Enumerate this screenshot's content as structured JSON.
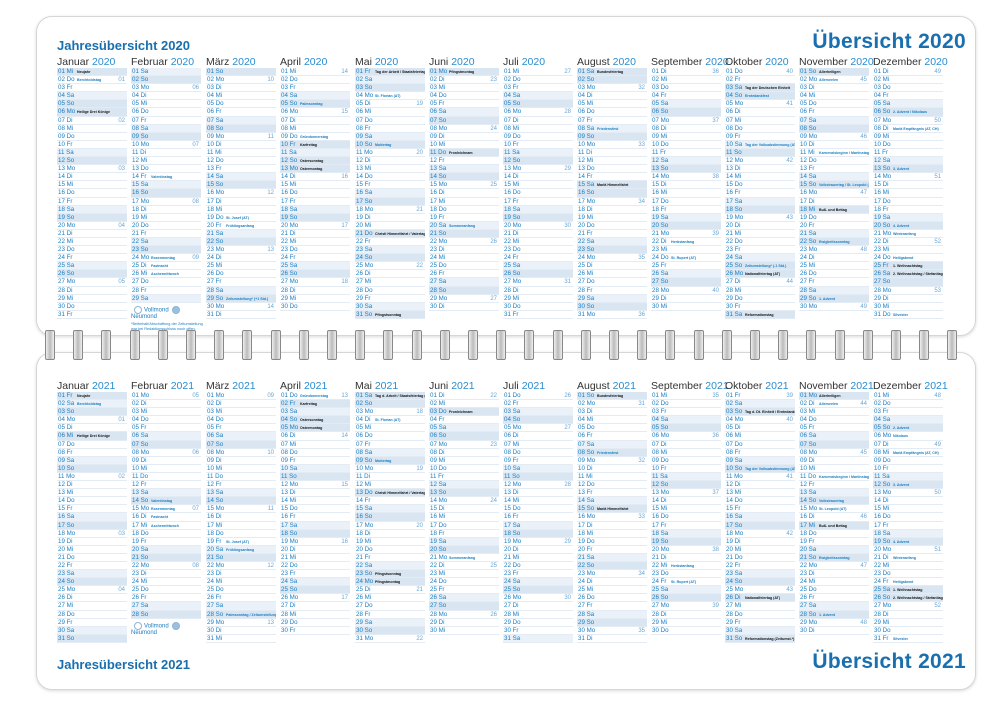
{
  "top": {
    "title_left": "Jahresübersicht 2020",
    "title_right": "Übersicht 2020"
  },
  "bottom": {
    "title_left": "Jahresübersicht 2021",
    "title_right": "Übersicht 2021"
  },
  "legend": {
    "full_moon": "Vollmond",
    "new_moon": "Neumond",
    "footnote": "*Beibehalt/Abschaffung der Zeitumstellung war bei Redaktionsschluss noch offen."
  },
  "colors": {
    "accent": "#1a6fae",
    "weekend": "#eaf1f8",
    "sunday": "#d9e6f2"
  },
  "months_2020": [
    {
      "name": "Januar",
      "year": "2020",
      "days": "01 Mi|02 Do|03 Fr|04 Sa|05 So|06 Mo|07 Di|08 Mi|09 Do|10 Fr|11 Sa|12 So|13 Mo|14 Di|15 Mi|16 Do|17 Fr|18 Sa|19 So|20 Mo|21 Di|22 Mi|23 Do|24 Fr|25 Sa|26 So|27 Mo|28 Di|29 Mi|30 Do|31 Fr",
      "weeks": {
        "2": "01",
        "7": "02",
        "13": "03",
        "20": "04",
        "27": "05"
      },
      "notes": {
        "1": "Neujahr",
        "2": "Berchtoldstag",
        "6": "Heilige Drei Könige"
      },
      "holidays": [
        1,
        6
      ]
    },
    {
      "name": "Februar",
      "year": "2020",
      "days": "01 Sa|02 So|03 Mo|04 Di|05 Mi|06 Do|07 Fr|08 Sa|09 So|10 Mo|11 Di|12 Mi|13 Do|14 Fr|15 Sa|16 So|17 Mo|18 Di|19 Mi|20 Do|21 Fr|22 Sa|23 So|24 Mo|25 Di|26 Mi|27 Do|28 Fr|29 Sa",
      "weeks": {
        "3": "06",
        "10": "07",
        "17": "08",
        "24": "09"
      },
      "notes": {
        "14": "Valentinstag",
        "24": "Rosenmontag",
        "25": "Fastnacht",
        "26": "Aschermittwoch"
      },
      "holidays": []
    },
    {
      "name": "März",
      "year": "2020",
      "days": "01 So|02 Mo|03 Di|04 Mi|05 Do|06 Fr|07 Sa|08 So|09 Mo|10 Di|11 Mi|12 Do|13 Fr|14 Sa|15 So|16 Mo|17 Di|18 Mi|19 Do|20 Fr|21 Sa|22 So|23 Mo|24 Di|25 Mi|26 Do|27 Fr|28 Sa|29 So|30 Mo|31 Di",
      "weeks": {
        "2": "10",
        "9": "11",
        "16": "12",
        "23": "13",
        "30": "14"
      },
      "notes": {
        "19": "St. Josef (AT)",
        "20": "Frühlingsanfang",
        "29": "Zeitumstellung* (+1 Std.)"
      },
      "holidays": []
    },
    {
      "name": "April",
      "year": "2020",
      "days": "01 Mi|02 Do|03 Fr|04 Sa|05 So|06 Mo|07 Di|08 Mi|09 Do|10 Fr|11 Sa|12 So|13 Mo|14 Di|15 Mi|16 Do|17 Fr|18 Sa|19 So|20 Mo|21 Di|22 Mi|23 Do|24 Fr|25 Sa|26 So|27 Mo|28 Di|29 Mi|30 Do",
      "weeks": {
        "1": "14",
        "6": "15",
        "14": "16",
        "20": "17",
        "27": "18"
      },
      "notes": {
        "5": "Palmsonntag",
        "9": "Gründonnerstag",
        "10": "Karfreitag",
        "12": "Ostersonntag",
        "13": "Ostermontag"
      },
      "holidays": [
        10,
        12,
        13
      ]
    },
    {
      "name": "Mai",
      "year": "2020",
      "days": "01 Fr|02 Sa|03 So|04 Mo|05 Di|06 Mi|07 Do|08 Fr|09 Sa|10 So|11 Mo|12 Di|13 Mi|14 Do|15 Fr|16 Sa|17 So|18 Mo|19 Di|20 Mi|21 Do|22 Fr|23 Sa|24 So|25 Mo|26 Di|27 Mi|28 Do|29 Fr|30 Sa|31 So",
      "weeks": {
        "5": "19",
        "11": "20",
        "18": "21",
        "25": "22"
      },
      "notes": {
        "1": "Tag der Arbeit / Staatsfeiertag (AT)",
        "4": "St. Florian (AT)",
        "10": "Muttertag",
        "21": "Christi Himmelfahrt / Vatertag",
        "31": "Pfingstsonntag"
      },
      "holidays": [
        1,
        21,
        31
      ]
    },
    {
      "name": "Juni",
      "year": "2020",
      "days": "01 Mo|02 Di|03 Mi|04 Do|05 Fr|06 Sa|07 So|08 Mo|09 Di|10 Mi|11 Do|12 Fr|13 Sa|14 So|15 Mo|16 Di|17 Mi|18 Do|19 Fr|20 Sa|21 So|22 Mo|23 Di|24 Mi|25 Do|26 Fr|27 Sa|28 So|29 Mo|30 Di",
      "weeks": {
        "2": "23",
        "8": "24",
        "15": "25",
        "22": "26",
        "29": "27"
      },
      "notes": {
        "1": "Pfingstmontag",
        "11": "Fronleichnam",
        "20": "Sommeranfang"
      },
      "holidays": [
        1,
        11
      ]
    },
    {
      "name": "Juli",
      "year": "2020",
      "days": "01 Mi|02 Do|03 Fr|04 Sa|05 So|06 Mo|07 Di|08 Mi|09 Do|10 Fr|11 Sa|12 So|13 Mo|14 Di|15 Mi|16 Do|17 Fr|18 Sa|19 So|20 Mo|21 Di|22 Mi|23 Do|24 Fr|25 Sa|26 So|27 Mo|28 Di|29 Mi|30 Do|31 Fr",
      "weeks": {
        "1": "27",
        "6": "28",
        "13": "29",
        "20": "30",
        "27": "31"
      },
      "notes": {},
      "holidays": []
    },
    {
      "name": "August",
      "year": "2020",
      "days": "01 Sa|02 So|03 Mo|04 Di|05 Mi|06 Do|07 Fr|08 Sa|09 So|10 Mo|11 Di|12 Mi|13 Do|14 Fr|15 Sa|16 So|17 Mo|18 Di|19 Mi|20 Do|21 Fr|22 Sa|23 So|24 Mo|25 Di|26 Mi|27 Do|28 Fr|29 Sa|30 So|31 Mo",
      "weeks": {
        "3": "32",
        "10": "33",
        "17": "34",
        "24": "35",
        "31": "36"
      },
      "notes": {
        "1": "Bundesfeiertag",
        "8": "Friedensfest",
        "15": "Mariä Himmelfahrt"
      },
      "holidays": [
        1,
        15
      ]
    },
    {
      "name": "September",
      "year": "2020",
      "days": "01 Di|02 Mi|03 Do|04 Fr|05 Sa|06 So|07 Mo|08 Di|09 Mi|10 Do|11 Fr|12 Sa|13 So|14 Mo|15 Di|16 Mi|17 Do|18 Fr|19 Sa|20 So|21 Mo|22 Di|23 Mi|24 Do|25 Fr|26 Sa|27 So|28 Mo|29 Di|30 Mi",
      "weeks": {
        "1": "36",
        "7": "37",
        "14": "38",
        "21": "39",
        "28": "40"
      },
      "notes": {
        "22": "Herbstanfang",
        "24": "St. Rupert (AT)"
      },
      "holidays": []
    },
    {
      "name": "Oktober",
      "year": "2020",
      "days": "01 Do|02 Fr|03 Sa|04 So|05 Mo|06 Di|07 Mi|08 Do|09 Fr|10 Sa|11 So|12 Mo|13 Di|14 Mi|15 Do|16 Fr|17 Sa|18 So|19 Mo|20 Di|21 Mi|22 Do|23 Fr|24 Sa|25 So|26 Mo|27 Di|28 Mi|29 Do|30 Fr|31 Sa",
      "weeks": {
        "1": "40",
        "5": "41",
        "12": "42",
        "19": "43",
        "27": "44"
      },
      "notes": {
        "3": "Tag der Deutschen Einheit",
        "4": "Erntedankfest",
        "10": "Tag der Volksabstimmung (AT)",
        "25": "Zeitumstellung* (-1 Std.)",
        "26": "Nationalfeiertag (AT)",
        "31": "Reformationstag"
      },
      "holidays": [
        3,
        26,
        31
      ]
    },
    {
      "name": "November",
      "year": "2020",
      "days": "01 So|02 Mo|03 Di|04 Mi|05 Do|06 Fr|07 Sa|08 So|09 Mo|10 Di|11 Mi|12 Do|13 Fr|14 Sa|15 So|16 Mo|17 Di|18 Mi|19 Do|20 Fr|21 Sa|22 So|23 Mo|24 Di|25 Mi|26 Do|27 Fr|28 Sa|29 So|30 Mo",
      "weeks": {
        "2": "45",
        "9": "46",
        "16": "47",
        "23": "48",
        "30": "49"
      },
      "notes": {
        "1": "Allerheiligen",
        "2": "Allerseelen",
        "11": "Karnevalsbeginn / Martinstag",
        "15": "Volkstrauertag / St. Leopold (AT)",
        "18": "Buß- und Bettag",
        "22": "Ewigkeitssonntag",
        "29": "1. Advent"
      },
      "holidays": [
        1,
        18
      ]
    },
    {
      "name": "Dezember",
      "year": "2020",
      "days": "01 Di|02 Mi|03 Do|04 Fr|05 Sa|06 So|07 Mo|08 Di|09 Mi|10 Do|11 Fr|12 Sa|13 So|14 Mo|15 Di|16 Mi|17 Do|18 Fr|19 Sa|20 So|21 Mo|22 Di|23 Mi|24 Do|25 Fr|26 Sa|27 So|28 Mo|29 Di|30 Mi|31 Do",
      "weeks": {
        "1": "49",
        "7": "50",
        "14": "51",
        "22": "52",
        "28": "53"
      },
      "notes": {
        "6": "2. Advent / Nikolaus",
        "8": "Mariä Empfängnis (AT, CH)",
        "13": "3. Advent",
        "20": "4. Advent",
        "21": "Winteranfang",
        "24": "Heiligabend",
        "25": "1. Weihnachtstag",
        "26": "2. Weihnachtstag / Stefanitag",
        "31": "Silvester"
      },
      "holidays": [
        25,
        26
      ]
    }
  ],
  "months_2021": [
    {
      "name": "Januar",
      "year": "2021",
      "days": "01 Fr|02 Sa|03 So|04 Mo|05 Di|06 Mi|07 Do|08 Fr|09 Sa|10 So|11 Mo|12 Di|13 Mi|14 Do|15 Fr|16 Sa|17 So|18 Mo|19 Di|20 Mi|21 Do|22 Fr|23 Sa|24 So|25 Mo|26 Di|27 Mi|28 Do|29 Fr|30 Sa|31 So",
      "weeks": {
        "4": "01",
        "11": "02",
        "18": "03",
        "25": "04"
      },
      "notes": {
        "1": "Neujahr",
        "2": "Berchtoldstag",
        "6": "Heilige Drei Könige"
      },
      "holidays": [
        1,
        6
      ]
    },
    {
      "name": "Februar",
      "year": "2021",
      "days": "01 Mo|02 Di|03 Mi|04 Do|05 Fr|06 Sa|07 So|08 Mo|09 Di|10 Mi|11 Do|12 Fr|13 Sa|14 So|15 Mo|16 Di|17 Mi|18 Do|19 Fr|20 Sa|21 So|22 Mo|23 Di|24 Mi|25 Do|26 Fr|27 Sa|28 So",
      "weeks": {
        "1": "05",
        "8": "06",
        "15": "07",
        "22": "08"
      },
      "notes": {
        "14": "Valentinstag",
        "15": "Rosenmontag",
        "16": "Fastnacht",
        "17": "Aschermittwoch"
      },
      "holidays": []
    },
    {
      "name": "März",
      "year": "2021",
      "days": "01 Mo|02 Di|03 Mi|04 Do|05 Fr|06 Sa|07 So|08 Mo|09 Di|10 Mi|11 Do|12 Fr|13 Sa|14 So|15 Mo|16 Di|17 Mi|18 Do|19 Fr|20 Sa|21 So|22 Mo|23 Di|24 Mi|25 Do|26 Fr|27 Sa|28 So|29 Mo|30 Di|31 Mi",
      "weeks": {
        "1": "09",
        "8": "10",
        "15": "11",
        "22": "12",
        "29": "13"
      },
      "notes": {
        "19": "St. Josef (AT)",
        "20": "Frühlingsanfang",
        "28": "Palmsonntag / Zeitumstellung*"
      },
      "holidays": []
    },
    {
      "name": "April",
      "year": "2021",
      "days": "01 Do|02 Fr|03 Sa|04 So|05 Mo|06 Di|07 Mi|08 Do|09 Fr|10 Sa|11 So|12 Mo|13 Di|14 Mi|15 Do|16 Fr|17 Sa|18 So|19 Mo|20 Di|21 Mi|22 Do|23 Fr|24 Sa|25 So|26 Mo|27 Di|28 Mi|29 Do|30 Fr",
      "weeks": {
        "1": "13",
        "6": "14",
        "12": "15",
        "19": "16",
        "26": "17"
      },
      "notes": {
        "1": "Gründonnerstag",
        "2": "Karfreitag",
        "4": "Ostersonntag",
        "5": "Ostermontag"
      },
      "holidays": [
        2,
        4,
        5
      ]
    },
    {
      "name": "Mai",
      "year": "2021",
      "days": "01 Sa|02 So|03 Mo|04 Di|05 Mi|06 Do|07 Fr|08 Sa|09 So|10 Mo|11 Di|12 Mi|13 Do|14 Fr|15 Sa|16 So|17 Mo|18 Di|19 Mi|20 Do|21 Fr|22 Sa|23 So|24 Mo|25 Di|26 Mi|27 Do|28 Fr|29 Sa|30 So|31 Mo",
      "weeks": {
        "3": "18",
        "10": "19",
        "17": "20",
        "25": "21",
        "31": "22"
      },
      "notes": {
        "1": "Tag d. Arbeit / Staatsfeiertag (AT)",
        "4": "St. Florian (AT)",
        "9": "Muttertag",
        "13": "Christi Himmelfahrt / Vatertag",
        "23": "Pfingstsonntag",
        "24": "Pfingstmontag"
      },
      "holidays": [
        1,
        13,
        23,
        24
      ]
    },
    {
      "name": "Juni",
      "year": "2021",
      "days": "01 Di|02 Mi|03 Do|04 Fr|05 Sa|06 So|07 Mo|08 Di|09 Mi|10 Do|11 Fr|12 Sa|13 So|14 Mo|15 Di|16 Mi|17 Do|18 Fr|19 Sa|20 So|21 Mo|22 Di|23 Mi|24 Do|25 Fr|26 Sa|27 So|28 Mo|29 Di|30 Mi",
      "weeks": {
        "1": "22",
        "7": "23",
        "14": "24",
        "22": "25",
        "28": "26"
      },
      "notes": {
        "3": "Fronleichnam",
        "21": "Sommeranfang"
      },
      "holidays": [
        3
      ]
    },
    {
      "name": "Juli",
      "year": "2021",
      "days": "01 Do|02 Fr|03 Sa|04 So|05 Mo|06 Di|07 Mi|08 Do|09 Fr|10 Sa|11 So|12 Mo|13 Di|14 Mi|15 Do|16 Fr|17 Sa|18 So|19 Mo|20 Di|21 Mi|22 Do|23 Fr|24 Sa|25 So|26 Mo|27 Di|28 Mi|29 Do|30 Fr|31 Sa",
      "weeks": {
        "1": "26",
        "5": "27",
        "12": "28",
        "19": "29",
        "26": "30"
      },
      "notes": {},
      "holidays": []
    },
    {
      "name": "August",
      "year": "2021",
      "days": "01 So|02 Mo|03 Di|04 Mi|05 Do|06 Fr|07 Sa|08 So|09 Mo|10 Di|11 Mi|12 Do|13 Fr|14 Sa|15 So|16 Mo|17 Di|18 Mi|19 Do|20 Fr|21 Sa|22 So|23 Mo|24 Di|25 Mi|26 Do|27 Fr|28 Sa|29 So|30 Mo|31 Di",
      "weeks": {
        "2": "31",
        "9": "32",
        "16": "33",
        "23": "34",
        "30": "35"
      },
      "notes": {
        "1": "Bundesfeiertag",
        "8": "Friedensfest",
        "15": "Mariä Himmelfahrt"
      },
      "holidays": [
        1,
        15
      ]
    },
    {
      "name": "September",
      "year": "2021",
      "days": "01 Mi|02 Do|03 Fr|04 Sa|05 So|06 Mo|07 Di|08 Mi|09 Do|10 Fr|11 Sa|12 So|13 Mo|14 Di|15 Mi|16 Do|17 Fr|18 Sa|19 So|20 Mo|21 Di|22 Mi|23 Do|24 Fr|25 Sa|26 So|27 Mo|28 Di|29 Mi|30 Do",
      "weeks": {
        "1": "35",
        "6": "36",
        "13": "37",
        "20": "38",
        "27": "39"
      },
      "notes": {
        "22": "Herbstanfang",
        "24": "St. Rupert (AT)"
      },
      "holidays": []
    },
    {
      "name": "Oktober",
      "year": "2021",
      "days": "01 Fr|02 Sa|03 So|04 Mo|05 Di|06 Mi|07 Do|08 Fr|09 Sa|10 So|11 Mo|12 Di|13 Mi|14 Do|15 Fr|16 Sa|17 So|18 Mo|19 Di|20 Mi|21 Do|22 Fr|23 Sa|24 So|25 Mo|26 Di|27 Mi|28 Do|29 Fr|30 Sa|31 So",
      "weeks": {
        "1": "39",
        "4": "40",
        "11": "41",
        "18": "42",
        "25": "43"
      },
      "notes": {
        "3": "Tag d. Dt. Einheit / Erntedankfest",
        "10": "Tag der Volksabstimmung (AT)",
        "26": "Nationalfeiertag (AT)",
        "31": "Reformationstag (Zeitumst.*)"
      },
      "holidays": [
        3,
        26,
        31
      ]
    },
    {
      "name": "November",
      "year": "2021",
      "days": "01 Mo|02 Di|03 Mi|04 Do|05 Fr|06 Sa|07 So|08 Mo|09 Di|10 Mi|11 Do|12 Fr|13 Sa|14 So|15 Mo|16 Di|17 Mi|18 Do|19 Fr|20 Sa|21 So|22 Mo|23 Di|24 Mi|25 Do|26 Fr|27 Sa|28 So|29 Mo|30 Di",
      "weeks": {
        "2": "44",
        "8": "45",
        "16": "46",
        "22": "47",
        "29": "48"
      },
      "notes": {
        "1": "Allerheiligen",
        "2": "Allerseelen",
        "11": "Karnevalsbeginn / Martinstag",
        "14": "Volkstrauertag",
        "15": "St. Leopold (AT)",
        "17": "Buß- und Bettag",
        "21": "Ewigkeitssonntag",
        "28": "1. Advent"
      },
      "holidays": [
        1,
        17
      ]
    },
    {
      "name": "Dezember",
      "year": "2021",
      "days": "01 Mi|02 Do|03 Fr|04 Sa|05 So|06 Mo|07 Di|08 Mi|09 Do|10 Fr|11 Sa|12 So|13 Mo|14 Di|15 Mi|16 Do|17 Fr|18 Sa|19 So|20 Mo|21 Di|22 Mi|23 Do|24 Fr|25 Sa|26 So|27 Mo|28 Di|29 Mi|30 Do|31 Fr",
      "weeks": {
        "1": "48",
        "7": "49",
        "13": "50",
        "20": "51",
        "27": "52"
      },
      "notes": {
        "5": "2. Advent",
        "6": "Nikolaus",
        "8": "Mariä Empfängnis (AT, CH)",
        "12": "3. Advent",
        "19": "4. Advent",
        "21": "Winteranfang",
        "24": "Heiligabend",
        "25": "1. Weihnachtstag",
        "26": "2. Weihnachtstag / Stefanitag",
        "31": "Silvester"
      },
      "holidays": [
        25,
        26
      ]
    }
  ]
}
